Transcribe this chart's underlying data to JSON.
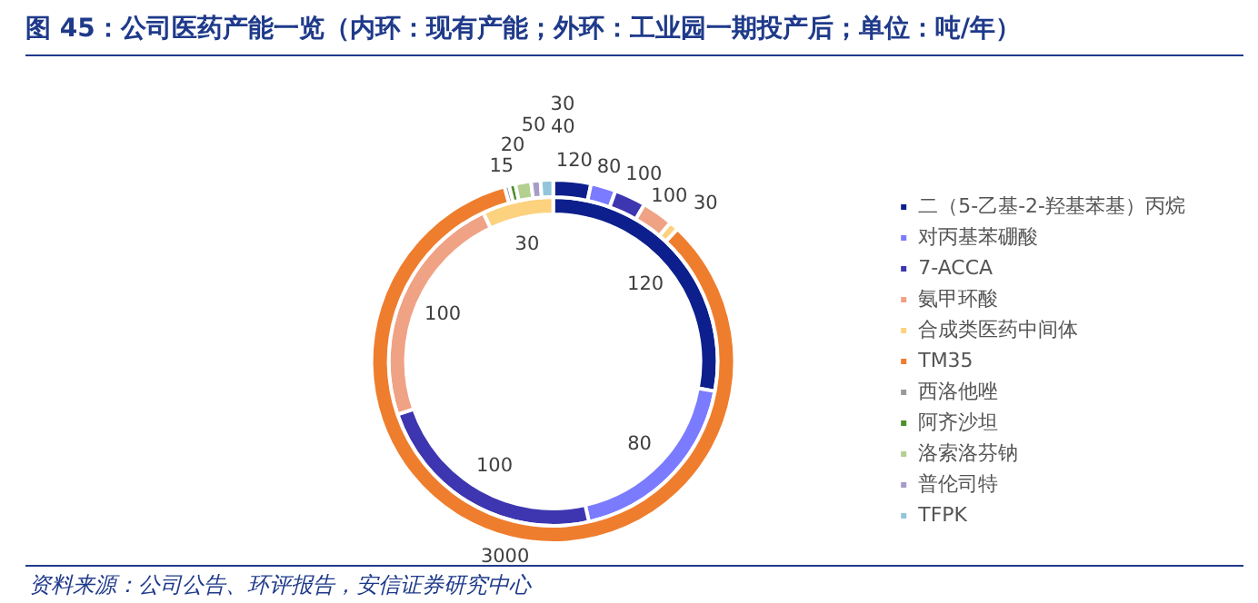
{
  "chart_data": {
    "type": "donut",
    "title": "图 45：公司医药产能一览（内环：现有产能；外环：工业园一期投产后；单位：吨/年）",
    "categories": [
      "二（5-乙基-2-羟基苯基）丙烷",
      "对丙基苯硼酸",
      "7-ACCA",
      "氨甲环酸",
      "合成类医药中间体",
      "TM35",
      "西洛他唑",
      "阿齐沙坦",
      "洛索洛芬钠",
      "普伦司特",
      "TFPK"
    ],
    "colors": [
      "#0d1f8c",
      "#7b7bff",
      "#3d36b0",
      "#f0a285",
      "#fcd27f",
      "#ef7d2e",
      "#999999",
      "#4e8f2e",
      "#b3d08f",
      "#a79bc8",
      "#92c5db"
    ],
    "series": [
      {
        "values": [
          120,
          80,
          100,
          100,
          30,
          3000,
          15,
          20,
          50,
          30,
          40
        ]
      },
      {
        "values": [
          120,
          80,
          100,
          100,
          30,
          null,
          null,
          null,
          null,
          null,
          null
        ]
      }
    ],
    "data_labels": true,
    "legend": "right",
    "annotations": [
      "资料来源：公司公告、环评报告，安信证券研究中心"
    ]
  }
}
